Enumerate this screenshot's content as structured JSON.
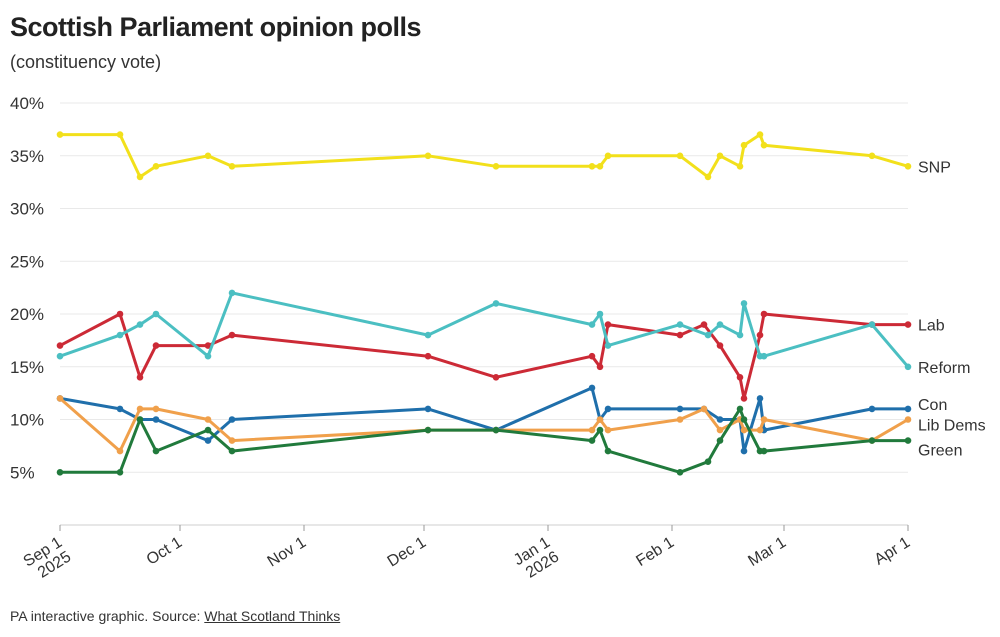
{
  "title": "Scottish Parliament opinion polls",
  "subtitle": "(constituency vote)",
  "footer": {
    "text": "PA interactive graphic. Source: ",
    "link_text": "What Scotland Thinks"
  },
  "chart_data": {
    "type": "line",
    "ylim": [
      0,
      40
    ],
    "yticks": [
      5,
      10,
      15,
      20,
      25,
      30,
      35,
      40
    ],
    "ytick_labels": [
      "5%",
      "10%",
      "15%",
      "20%",
      "25%",
      "30%",
      "35%",
      "40%"
    ],
    "xlim": [
      "2025-09-01",
      "2026-04-01"
    ],
    "xticks": [
      {
        "date": "2025-09-01",
        "label": [
          "Sep 1",
          "2025"
        ]
      },
      {
        "date": "2025-10-01",
        "label": [
          "Oct 1"
        ]
      },
      {
        "date": "2025-11-01",
        "label": [
          "Nov 1"
        ]
      },
      {
        "date": "2025-12-01",
        "label": [
          "Dec 1"
        ]
      },
      {
        "date": "2026-01-01",
        "label": [
          "Jan 1",
          "2026"
        ]
      },
      {
        "date": "2026-02-01",
        "label": [
          "Feb 1"
        ]
      },
      {
        "date": "2026-03-01",
        "label": [
          "Mar 1"
        ]
      },
      {
        "date": "2026-04-01",
        "label": [
          "Apr 1"
        ]
      }
    ],
    "grid": true,
    "legend": "direct labels at line ends (right)",
    "series": [
      {
        "name": "SNP",
        "color": "#f2e01b",
        "x": [
          "2025-09-01",
          "2025-09-16",
          "2025-09-21",
          "2025-09-25",
          "2025-10-08",
          "2025-10-14",
          "2025-12-02",
          "2025-12-19",
          "2026-01-12",
          "2026-01-14",
          "2026-01-16",
          "2026-02-03",
          "2026-02-10",
          "2026-02-13",
          "2026-02-18",
          "2026-02-19",
          "2026-02-23",
          "2026-02-24",
          "2026-03-23",
          "2026-04-01"
        ],
        "y": [
          37,
          37,
          33,
          34,
          35,
          34,
          35,
          34,
          34,
          34,
          35,
          35,
          33,
          35,
          34,
          36,
          37,
          36,
          35,
          34
        ]
      },
      {
        "name": "Lab",
        "color": "#cc2a36",
        "x": [
          "2025-09-01",
          "2025-09-16",
          "2025-09-21",
          "2025-09-25",
          "2025-10-08",
          "2025-10-14",
          "2025-12-02",
          "2025-12-19",
          "2026-01-12",
          "2026-01-14",
          "2026-01-16",
          "2026-02-03",
          "2026-02-09",
          "2026-02-13",
          "2026-02-18",
          "2026-02-19",
          "2026-02-23",
          "2026-02-24",
          "2026-03-23",
          "2026-04-01"
        ],
        "y": [
          17,
          20,
          14,
          17,
          17,
          18,
          16,
          14,
          16,
          15,
          19,
          18,
          19,
          17,
          14,
          12,
          18,
          20,
          19,
          19
        ]
      },
      {
        "name": "Reform",
        "color": "#4bbfc2",
        "x": [
          "2025-09-01",
          "2025-09-16",
          "2025-09-21",
          "2025-09-25",
          "2025-10-08",
          "2025-10-14",
          "2025-12-02",
          "2025-12-19",
          "2026-01-12",
          "2026-01-14",
          "2026-01-16",
          "2026-02-03",
          "2026-02-10",
          "2026-02-13",
          "2026-02-18",
          "2026-02-19",
          "2026-02-23",
          "2026-02-24",
          "2026-03-23",
          "2026-04-01"
        ],
        "y": [
          16,
          18,
          19,
          20,
          16,
          22,
          18,
          21,
          19,
          20,
          17,
          19,
          18,
          19,
          18,
          21,
          16,
          16,
          19,
          15
        ]
      },
      {
        "name": "Con",
        "color": "#1f6fab",
        "x": [
          "2025-09-01",
          "2025-09-16",
          "2025-09-21",
          "2025-09-25",
          "2025-10-08",
          "2025-10-14",
          "2025-12-02",
          "2025-12-19",
          "2026-01-12",
          "2026-01-14",
          "2026-01-16",
          "2026-02-03",
          "2026-02-09",
          "2026-02-13",
          "2026-02-18",
          "2026-02-19",
          "2026-02-23",
          "2026-02-24",
          "2026-03-23",
          "2026-04-01"
        ],
        "y": [
          12,
          11,
          10,
          10,
          8,
          10,
          11,
          9,
          13,
          10,
          11,
          11,
          11,
          10,
          10,
          7,
          12,
          9,
          11,
          11
        ]
      },
      {
        "name": "Lib Dems",
        "color": "#f0a04b",
        "x": [
          "2025-09-01",
          "2025-09-16",
          "2025-09-21",
          "2025-09-25",
          "2025-10-08",
          "2025-10-14",
          "2025-12-02",
          "2025-12-19",
          "2026-01-12",
          "2026-01-14",
          "2026-01-16",
          "2026-02-03",
          "2026-02-09",
          "2026-02-13",
          "2026-02-18",
          "2026-02-19",
          "2026-02-23",
          "2026-02-24",
          "2026-03-23",
          "2026-04-01"
        ],
        "y": [
          12,
          7,
          11,
          11,
          10,
          8,
          9,
          9,
          9,
          10,
          9,
          10,
          11,
          9,
          10,
          9,
          9,
          10,
          8,
          10
        ]
      },
      {
        "name": "Green",
        "color": "#217a3c",
        "x": [
          "2025-09-01",
          "2025-09-16",
          "2025-09-21",
          "2025-09-25",
          "2025-10-08",
          "2025-10-14",
          "2025-12-02",
          "2025-12-19",
          "2026-01-12",
          "2026-01-14",
          "2026-01-16",
          "2026-02-03",
          "2026-02-10",
          "2026-02-13",
          "2026-02-18",
          "2026-02-19",
          "2026-02-23",
          "2026-02-24",
          "2026-03-23",
          "2026-04-01"
        ],
        "y": [
          5,
          5,
          10,
          7,
          9,
          7,
          9,
          9,
          8,
          9,
          7,
          5,
          6,
          8,
          11,
          10,
          7,
          7,
          8,
          8
        ]
      }
    ]
  }
}
